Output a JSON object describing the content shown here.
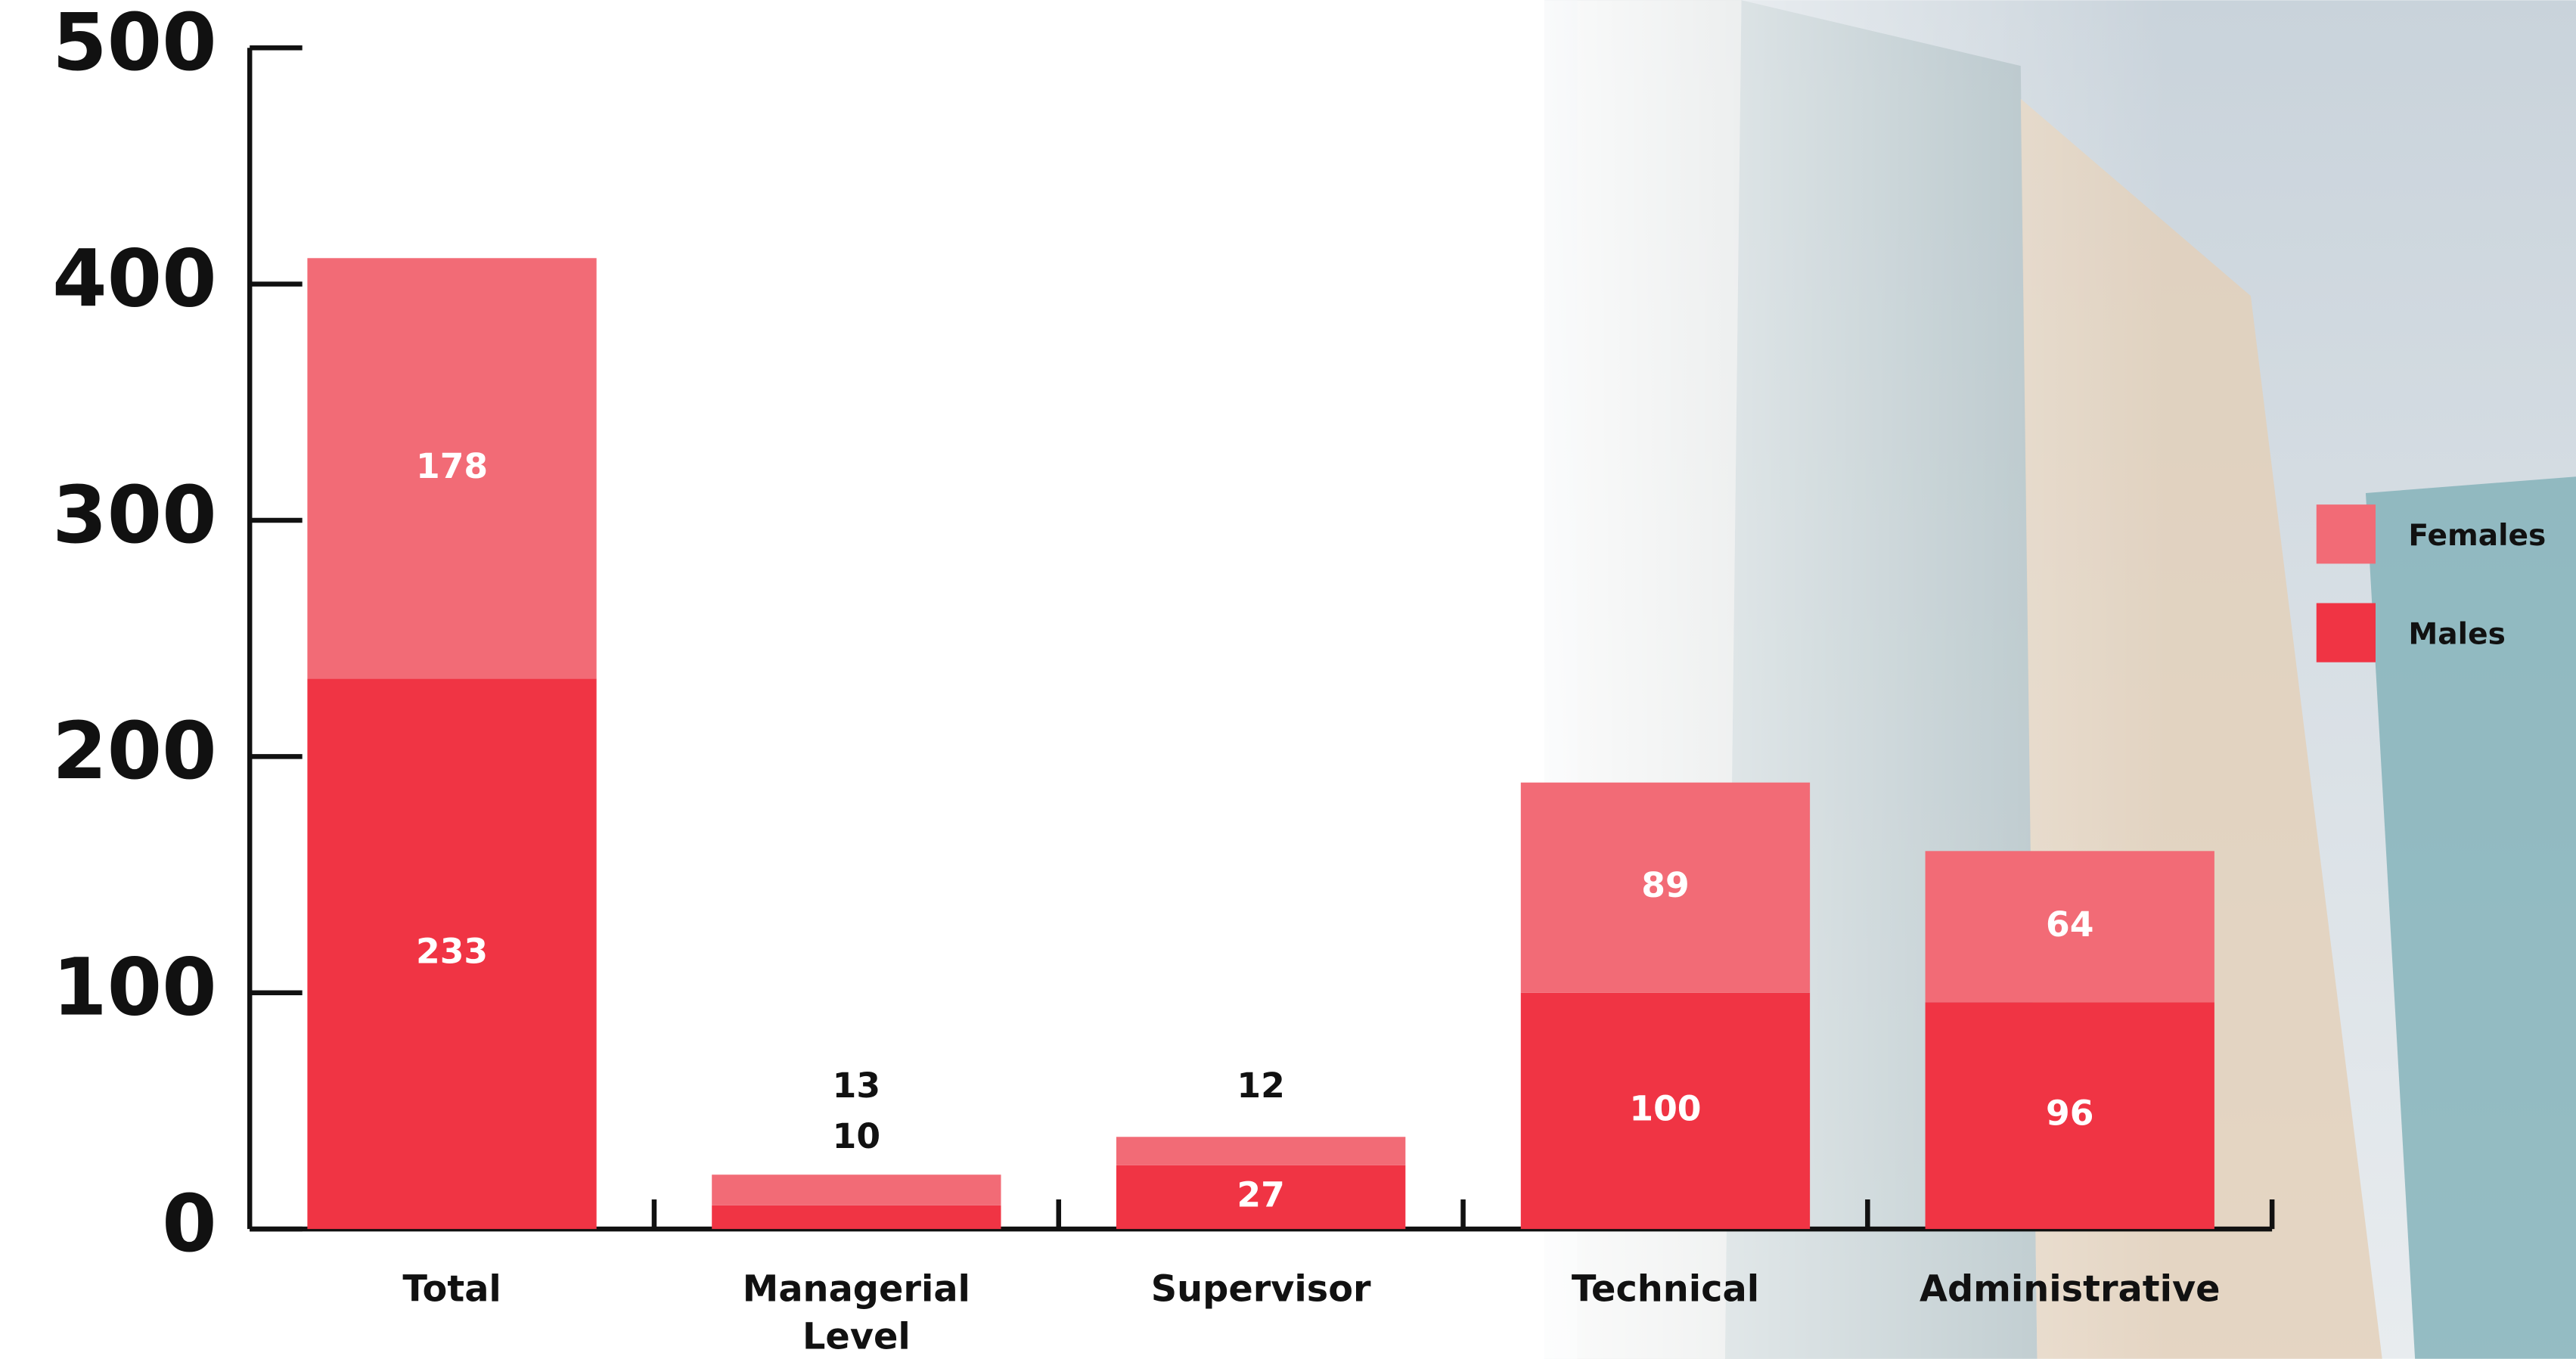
{
  "chart_data": {
    "type": "stacked_bar",
    "categories": [
      "Total",
      "Managerial Level",
      "Supervisor",
      "Technical",
      "Administrative"
    ],
    "series": [
      {
        "name": "Males",
        "color": "#f03444",
        "values": [
          233,
          10,
          27,
          100,
          96
        ]
      },
      {
        "name": "Females",
        "color": "#f26b76",
        "values": [
          178,
          13,
          12,
          89,
          64
        ]
      }
    ],
    "ylim": [
      0,
      500
    ],
    "yticks": [
      0,
      100,
      200,
      300,
      400,
      500
    ],
    "legend": "right"
  }
}
